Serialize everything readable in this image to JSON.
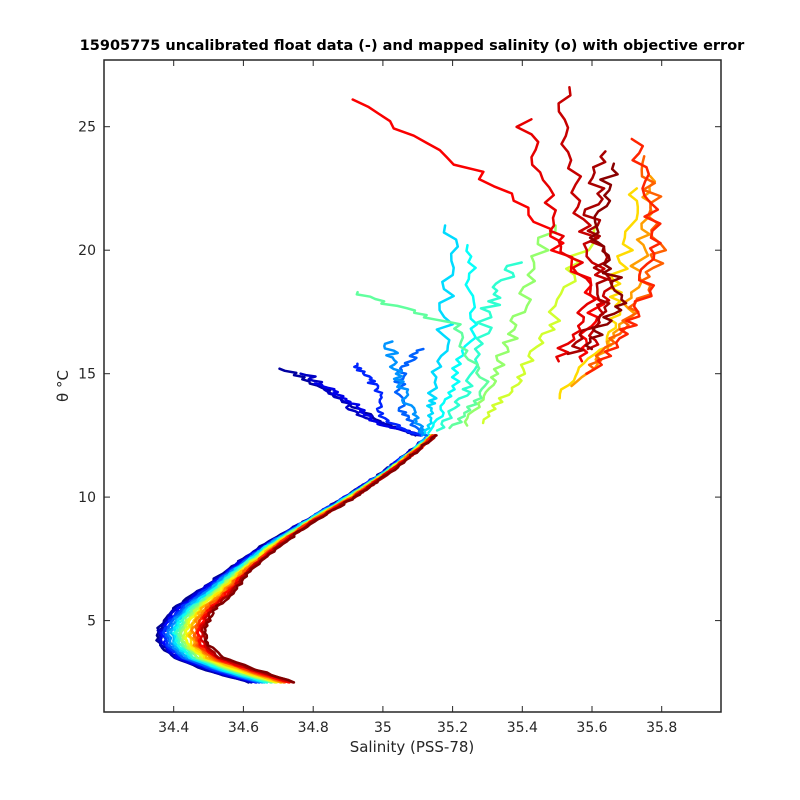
{
  "chart_data": {
    "type": "line",
    "title": "15905775 uncalibrated float data (-) and mapped salinity (o) with objective error",
    "xlabel": "Salinity (PSS-78)",
    "ylabel": "θ °C",
    "xlim": [
      34.2,
      35.97
    ],
    "ylim": [
      1.3,
      27.7
    ],
    "xticks": [
      34.4,
      34.6,
      34.8,
      35,
      35.2,
      35.4,
      35.6,
      35.8
    ],
    "xtick_labels": [
      "34.4",
      "34.6",
      "34.8",
      "35",
      "35.2",
      "35.4",
      "35.6",
      "35.8"
    ],
    "yticks": [
      5,
      10,
      15,
      20,
      25
    ],
    "ytick_labels": [
      "5",
      "10",
      "15",
      "20",
      "25"
    ],
    "grid": false,
    "colormap": [
      "#00008f",
      "#0000ff",
      "#0080ff",
      "#00ffff",
      "#80ff80",
      "#ffff00",
      "#ff8000",
      "#ff0000",
      "#800000"
    ],
    "n_profiles": 24,
    "deep_branch": {
      "T": [
        2.5,
        3.0,
        3.5,
        4.0,
        4.5,
        5.0,
        5.5,
        6.0,
        7.0,
        8.0,
        9.0,
        10.0,
        11.0,
        12.0,
        12.5
      ],
      "S_min": [
        34.62,
        34.49,
        34.4,
        34.36,
        34.35,
        34.37,
        34.4,
        34.45,
        34.55,
        34.65,
        34.77,
        34.89,
        35.0,
        35.09,
        35.13
      ],
      "S_max": [
        34.75,
        34.64,
        34.54,
        34.5,
        34.49,
        34.5,
        34.52,
        34.56,
        34.62,
        34.7,
        34.8,
        34.92,
        35.02,
        35.11,
        35.15
      ]
    },
    "upper_profiles": [
      {
        "color_index": 0.02,
        "T": [
          12.5,
          13.0,
          14.0,
          15.2
        ],
        "S": [
          35.1,
          35.0,
          34.88,
          34.72
        ]
      },
      {
        "color_index": 0.06,
        "T": [
          12.5,
          13.2,
          14.2,
          15.0
        ],
        "S": [
          35.1,
          34.95,
          34.85,
          34.78
        ]
      },
      {
        "color_index": 0.1,
        "T": [
          12.5,
          13.0,
          13.8,
          14.6
        ],
        "S": [
          35.12,
          34.98,
          34.92,
          34.82
        ]
      },
      {
        "color_index": 0.16,
        "T": [
          12.5,
          13.2,
          14.5,
          15.4
        ],
        "S": [
          35.1,
          35.0,
          34.98,
          34.92
        ]
      },
      {
        "color_index": 0.22,
        "T": [
          12.5,
          13.5,
          15.0,
          16.0
        ],
        "S": [
          35.12,
          35.05,
          35.05,
          35.1
        ]
      },
      {
        "color_index": 0.27,
        "T": [
          12.5,
          13.5,
          15.0,
          16.3
        ],
        "S": [
          35.12,
          35.08,
          35.04,
          35.02
        ]
      },
      {
        "color_index": 0.34,
        "T": [
          12.6,
          14.0,
          17.0,
          21.0
        ],
        "S": [
          35.13,
          35.14,
          35.18,
          35.2
        ]
      },
      {
        "color_index": 0.38,
        "T": [
          12.6,
          14.5,
          17.0,
          20.2
        ],
        "S": [
          35.14,
          35.2,
          35.26,
          35.24
        ]
      },
      {
        "color_index": 0.42,
        "T": [
          12.7,
          14.5,
          17.5,
          19.5
        ],
        "S": [
          35.16,
          35.25,
          35.3,
          35.38
        ]
      },
      {
        "color_index": 0.47,
        "T": [
          12.8,
          14.5,
          17.0,
          18.3
        ],
        "S": [
          35.2,
          35.3,
          35.2,
          34.92
        ]
      },
      {
        "color_index": 0.52,
        "T": [
          12.9,
          15.0,
          17.5,
          21.0
        ],
        "S": [
          35.24,
          35.32,
          35.4,
          35.48
        ]
      },
      {
        "color_index": 0.58,
        "T": [
          13.0,
          15.0,
          17.5,
          21.0
        ],
        "S": [
          35.28,
          35.4,
          35.5,
          35.6
        ]
      },
      {
        "color_index": 0.66,
        "T": [
          14.0,
          16.5,
          19.0,
          22.5
        ],
        "S": [
          35.5,
          35.66,
          35.68,
          35.72
        ]
      },
      {
        "color_index": 0.72,
        "T": [
          14.5,
          17.0,
          20.0,
          23.0
        ],
        "S": [
          35.55,
          35.7,
          35.74,
          35.78
        ]
      },
      {
        "color_index": 0.78,
        "T": [
          15.0,
          17.5,
          20.0,
          23.8
        ],
        "S": [
          35.58,
          35.72,
          35.8,
          35.76
        ]
      },
      {
        "color_index": 0.84,
        "T": [
          15.0,
          17.5,
          20.5,
          24.5
        ],
        "S": [
          35.6,
          35.74,
          35.78,
          35.72
        ]
      },
      {
        "color_index": 0.88,
        "T": [
          15.5,
          18.0,
          22.0,
          26.1
        ],
        "S": [
          35.56,
          35.62,
          35.4,
          34.92
        ]
      },
      {
        "color_index": 0.9,
        "T": [
          15.5,
          18.0,
          21.0,
          25.3
        ],
        "S": [
          35.5,
          35.6,
          35.5,
          35.4
        ]
      },
      {
        "color_index": 0.93,
        "T": [
          16.0,
          18.5,
          22.0,
          26.6
        ],
        "S": [
          35.6,
          35.64,
          35.56,
          35.52
        ]
      },
      {
        "color_index": 0.96,
        "T": [
          15.8,
          18.0,
          21.0,
          24.0
        ],
        "S": [
          35.55,
          35.64,
          35.6,
          35.62
        ]
      },
      {
        "color_index": 0.99,
        "T": [
          16.0,
          18.0,
          20.5,
          23.5
        ],
        "S": [
          35.58,
          35.68,
          35.62,
          35.66
        ]
      }
    ]
  }
}
